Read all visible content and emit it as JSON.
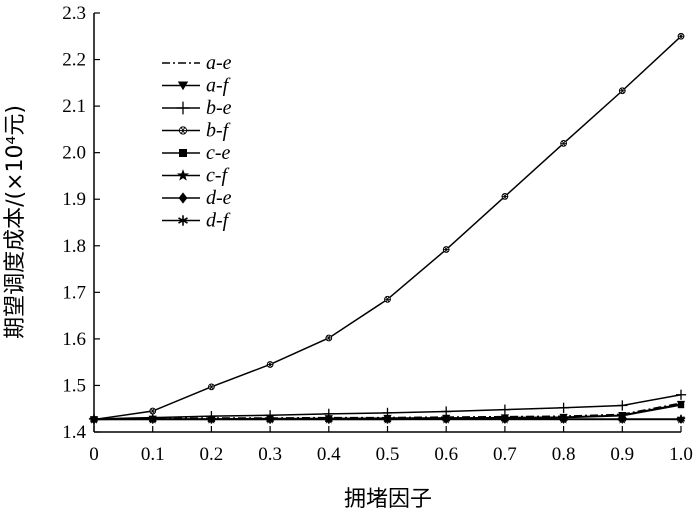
{
  "chart_data": {
    "type": "line",
    "title": "",
    "xlabel": "拥堵因子",
    "ylabel": "期望调度成本/(×10⁴元)",
    "xlim": [
      0,
      1.0
    ],
    "ylim": [
      1.4,
      2.3
    ],
    "x": [
      0,
      0.1,
      0.2,
      0.3,
      0.4,
      0.5,
      0.6,
      0.7,
      0.8,
      0.9,
      1.0
    ],
    "x_tick_labels": [
      "0",
      "0.1",
      "0.2",
      "0.3",
      "0.4",
      "0.5",
      "0.6",
      "0.7",
      "0.8",
      "0.9",
      "1.0"
    ],
    "y_ticks": [
      1.4,
      1.5,
      1.6,
      1.7,
      1.8,
      1.9,
      2.0,
      2.1,
      2.2,
      2.3
    ],
    "y_tick_labels": [
      "1.4",
      "1.5",
      "1.6",
      "1.7",
      "1.8",
      "1.9",
      "2.0",
      "2.1",
      "2.2",
      "2.3"
    ],
    "grid": false,
    "legend_position": "top-left",
    "series": [
      {
        "name": "a-e",
        "marker": "none",
        "dash": "dashdot",
        "values": [
          1.428,
          1.429,
          1.43,
          1.43,
          1.431,
          1.431,
          1.432,
          1.433,
          1.434,
          1.438,
          1.462
        ]
      },
      {
        "name": "a-f",
        "marker": "triangle-down",
        "dash": "solid",
        "values": [
          1.427,
          1.428,
          1.428,
          1.429,
          1.429,
          1.43,
          1.43,
          1.431,
          1.432,
          1.436,
          1.46
        ]
      },
      {
        "name": "b-e",
        "marker": "plus",
        "dash": "solid",
        "values": [
          1.428,
          1.431,
          1.434,
          1.436,
          1.439,
          1.441,
          1.444,
          1.448,
          1.452,
          1.457,
          1.48
        ]
      },
      {
        "name": "b-f",
        "marker": "star",
        "dash": "solid",
        "values": [
          1.427,
          1.445,
          1.497,
          1.545,
          1.602,
          1.685,
          1.792,
          1.906,
          2.02,
          2.133,
          2.25
        ]
      },
      {
        "name": "c-e",
        "marker": "square",
        "dash": "solid",
        "values": [
          1.427,
          1.428,
          1.428,
          1.428,
          1.429,
          1.429,
          1.43,
          1.43,
          1.431,
          1.435,
          1.458
        ]
      },
      {
        "name": "c-f",
        "marker": "star5",
        "dash": "solid",
        "values": [
          1.427,
          1.427,
          1.427,
          1.427,
          1.427,
          1.427,
          1.427,
          1.427,
          1.427,
          1.427,
          1.427
        ]
      },
      {
        "name": "d-e",
        "marker": "diamond",
        "dash": "solid",
        "values": [
          1.427,
          1.427,
          1.427,
          1.427,
          1.427,
          1.427,
          1.427,
          1.427,
          1.427,
          1.427,
          1.427
        ]
      },
      {
        "name": "d-f",
        "marker": "asterisk",
        "dash": "solid",
        "values": [
          1.427,
          1.427,
          1.427,
          1.427,
          1.427,
          1.427,
          1.428,
          1.428,
          1.428,
          1.428,
          1.428
        ]
      }
    ]
  }
}
